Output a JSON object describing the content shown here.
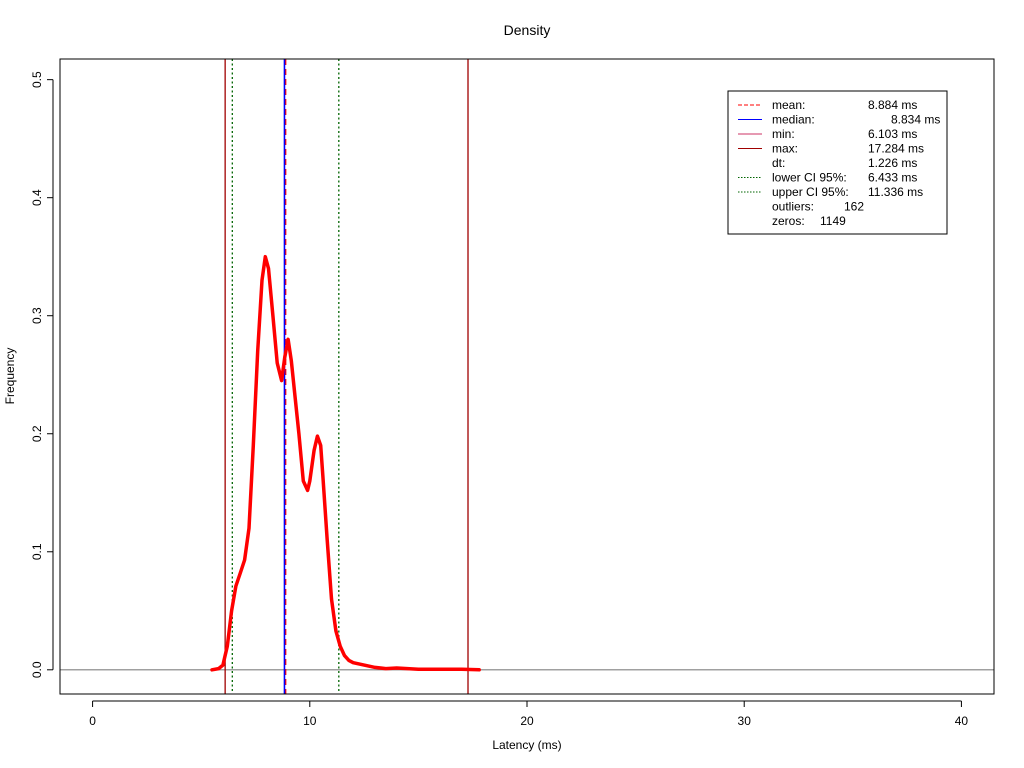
{
  "chart_data": {
    "type": "line",
    "title": "Density",
    "xlabel": "Latency (ms)",
    "ylabel": "Frequency",
    "xlim": [
      -1.5,
      41.5
    ],
    "ylim": [
      -0.0205,
      0.5175
    ],
    "xticks": [
      0,
      10,
      20,
      30,
      40
    ],
    "xtick_labels": [
      "0",
      "10",
      "20",
      "30",
      "40"
    ],
    "yticks": [
      0.0,
      0.1,
      0.2,
      0.3,
      0.4,
      0.5
    ],
    "ytick_labels": [
      "0.0",
      "0.1",
      "0.2",
      "0.3",
      "0.4",
      "0.5"
    ],
    "grid": false,
    "legend_position": "top-right",
    "density": {
      "color": "#ff0000",
      "x": [
        5.5,
        5.8,
        6.0,
        6.2,
        6.4,
        6.6,
        6.8,
        7.0,
        7.2,
        7.4,
        7.6,
        7.8,
        7.95,
        8.1,
        8.3,
        8.5,
        8.7,
        8.85,
        9.0,
        9.15,
        9.3,
        9.5,
        9.7,
        9.9,
        10.0,
        10.2,
        10.35,
        10.5,
        10.6,
        10.8,
        11.0,
        11.2,
        11.4,
        11.6,
        11.8,
        12.0,
        12.5,
        13.0,
        13.5,
        14.0,
        14.5,
        15.0,
        16.0,
        17.0,
        17.8
      ],
      "y": [
        0.0,
        0.001,
        0.004,
        0.02,
        0.05,
        0.071,
        0.082,
        0.093,
        0.12,
        0.19,
        0.27,
        0.33,
        0.35,
        0.34,
        0.3,
        0.26,
        0.245,
        0.265,
        0.28,
        0.262,
        0.235,
        0.2,
        0.16,
        0.152,
        0.16,
        0.186,
        0.198,
        0.19,
        0.165,
        0.11,
        0.06,
        0.033,
        0.02,
        0.012,
        0.008,
        0.006,
        0.004,
        0.002,
        0.001,
        0.0015,
        0.001,
        0.0005,
        0.0005,
        0.0005,
        0.0
      ]
    },
    "reference_lines": [
      {
        "name": "mean",
        "x": 8.884,
        "color": "#ff0000",
        "dash": "dashed"
      },
      {
        "name": "median",
        "x": 8.834,
        "color": "#0000ff",
        "dash": "solid"
      },
      {
        "name": "min",
        "x": 6.103,
        "color": "#a00000",
        "dash": "solid"
      },
      {
        "name": "max",
        "x": 17.284,
        "color": "#a00000",
        "dash": "solid"
      },
      {
        "name": "lower-ci",
        "x": 6.433,
        "color": "#006400",
        "dash": "dotted"
      },
      {
        "name": "upper-ci",
        "x": 11.336,
        "color": "#006400",
        "dash": "dotted"
      }
    ],
    "baseline": {
      "y": 0,
      "color": "#808080"
    },
    "legend": [
      {
        "key": "mean",
        "label": "mean:",
        "value": "8.884 ms",
        "color": "#ff0000",
        "dash": "dashed"
      },
      {
        "key": "median",
        "label": "median:",
        "value": "8.834 ms",
        "color": "#0000ff",
        "dash": "solid"
      },
      {
        "key": "min",
        "label": "min:",
        "value": "6.103 ms",
        "color": "#cc3366",
        "dash": "solid"
      },
      {
        "key": "max",
        "label": "max:",
        "value": "17.284 ms",
        "color": "#a00000",
        "dash": "solid"
      },
      {
        "key": "dt",
        "label": "dt:",
        "value": "1.226 ms",
        "color": "",
        "dash": "none"
      },
      {
        "key": "lower-ci",
        "label": "lower CI 95%:",
        "value": "6.433 ms",
        "color": "#006400",
        "dash": "dotted"
      },
      {
        "key": "upper-ci",
        "label": "upper CI 95%:",
        "value": "11.336 ms",
        "color": "#006400",
        "dash": "dotted"
      },
      {
        "key": "outliers",
        "label": "outliers:",
        "value": "162",
        "color": "",
        "dash": "none"
      },
      {
        "key": "zeros",
        "label": "zeros:",
        "value": "1149",
        "color": "",
        "dash": "none"
      }
    ]
  }
}
